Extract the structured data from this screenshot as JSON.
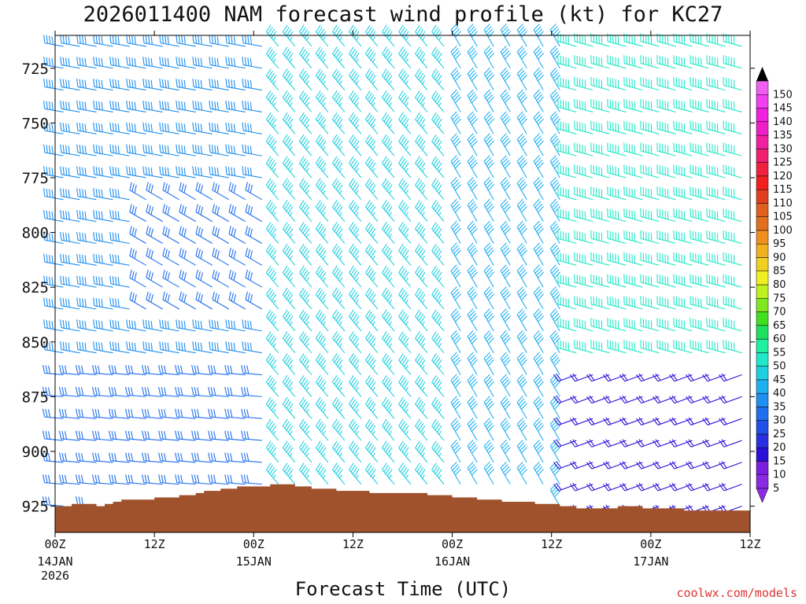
{
  "chart_data": {
    "type": "wind-barb-profile",
    "title": "2026011400 NAM forecast wind profile (kt) for KC27",
    "xlabel": "Forecast Time (UTC)",
    "ylabel": "",
    "credit": "coolwx.com/models",
    "x_hours_range": [
      0,
      84
    ],
    "x_ticks": [
      {
        "hour": 0,
        "label": "00Z",
        "date": "14JAN",
        "year": "2026"
      },
      {
        "hour": 12,
        "label": "12Z",
        "date": "",
        "year": ""
      },
      {
        "hour": 24,
        "label": "00Z",
        "date": "15JAN",
        "year": ""
      },
      {
        "hour": 36,
        "label": "12Z",
        "date": "",
        "year": ""
      },
      {
        "hour": 48,
        "label": "00Z",
        "date": "16JAN",
        "year": ""
      },
      {
        "hour": 60,
        "label": "12Z",
        "date": "",
        "year": ""
      },
      {
        "hour": 72,
        "label": "00Z",
        "date": "17JAN",
        "year": ""
      },
      {
        "hour": 84,
        "label": "12Z",
        "date": "",
        "year": ""
      }
    ],
    "y_pressure_range_hpa": [
      710,
      937
    ],
    "y_ticks": [
      725,
      750,
      775,
      800,
      825,
      850,
      875,
      900,
      925
    ],
    "pressure_levels_hpa": [
      715,
      725,
      735,
      745,
      755,
      765,
      775,
      785,
      795,
      805,
      815,
      825,
      835,
      845,
      855,
      865,
      875,
      885,
      895,
      905,
      915,
      925
    ],
    "colorbar_levels_kt": [
      5,
      10,
      15,
      20,
      25,
      30,
      35,
      40,
      45,
      50,
      55,
      60,
      65,
      70,
      75,
      80,
      85,
      90,
      95,
      100,
      105,
      110,
      115,
      120,
      125,
      130,
      135,
      140,
      145,
      150
    ],
    "colorbar_labels": [
      "5",
      "10",
      "15",
      "20",
      "25",
      "30",
      "35",
      "40",
      "45",
      "50",
      "55",
      "60",
      "65",
      "70",
      "75",
      "80",
      "85",
      "90",
      "95",
      "100",
      "105",
      "110",
      "115",
      "120",
      "125",
      "130",
      "135",
      "140",
      "145",
      "150"
    ],
    "colorbar_colors": [
      "#8a2be2",
      "#7a1fe0",
      "#2b10d8",
      "#2a30e0",
      "#2050e8",
      "#1f6fee",
      "#1f8ff0",
      "#1fb0f0",
      "#1fd0e0",
      "#20e8c8",
      "#20f0a0",
      "#20e060",
      "#40e020",
      "#80e820",
      "#c0f020",
      "#f0f020",
      "#f0d020",
      "#f0b020",
      "#f09020",
      "#e07020",
      "#e06020",
      "#e04020",
      "#f02020",
      "#f02040",
      "#f02070",
      "#f020a0",
      "#f020c8",
      "#f020e0",
      "#f040f0",
      "#f060f0"
    ],
    "surface_terrain": {
      "color": "#a0522d",
      "points": [
        [
          0,
          925
        ],
        [
          1,
          925
        ],
        [
          2,
          924
        ],
        [
          3,
          924
        ],
        [
          4,
          924
        ],
        [
          5,
          925
        ],
        [
          6,
          924
        ],
        [
          7,
          923
        ],
        [
          8,
          922
        ],
        [
          9,
          922
        ],
        [
          10,
          922
        ],
        [
          11,
          922
        ],
        [
          12,
          921
        ],
        [
          13,
          921
        ],
        [
          14,
          921
        ],
        [
          15,
          920
        ],
        [
          16,
          920
        ],
        [
          17,
          919
        ],
        [
          18,
          918
        ],
        [
          19,
          918
        ],
        [
          20,
          917
        ],
        [
          21,
          917
        ],
        [
          22,
          916
        ],
        [
          23,
          916
        ],
        [
          24,
          916
        ],
        [
          25,
          916
        ],
        [
          26,
          915
        ],
        [
          27,
          915
        ],
        [
          28,
          915
        ],
        [
          29,
          916
        ],
        [
          30,
          916
        ],
        [
          31,
          917
        ],
        [
          32,
          917
        ],
        [
          33,
          917
        ],
        [
          34,
          918
        ],
        [
          35,
          918
        ],
        [
          36,
          918
        ],
        [
          37,
          918
        ],
        [
          38,
          919
        ],
        [
          39,
          919
        ],
        [
          40,
          919
        ],
        [
          41,
          919
        ],
        [
          42,
          919
        ],
        [
          43,
          919
        ],
        [
          44,
          919
        ],
        [
          45,
          920
        ],
        [
          46,
          920
        ],
        [
          47,
          920
        ],
        [
          48,
          921
        ],
        [
          49,
          921
        ],
        [
          50,
          921
        ],
        [
          51,
          922
        ],
        [
          52,
          922
        ],
        [
          53,
          922
        ],
        [
          54,
          923
        ],
        [
          55,
          923
        ],
        [
          56,
          923
        ],
        [
          57,
          923
        ],
        [
          58,
          924
        ],
        [
          59,
          924
        ],
        [
          60,
          924
        ],
        [
          61,
          925
        ],
        [
          62,
          925
        ],
        [
          63,
          926
        ],
        [
          64,
          926
        ],
        [
          65,
          926
        ],
        [
          66,
          926
        ],
        [
          67,
          926
        ],
        [
          68,
          925
        ],
        [
          69,
          925
        ],
        [
          70,
          925
        ],
        [
          71,
          926
        ],
        [
          72,
          926
        ],
        [
          73,
          926
        ],
        [
          74,
          926
        ],
        [
          75,
          926
        ],
        [
          76,
          927
        ],
        [
          77,
          927
        ],
        [
          78,
          927
        ],
        [
          79,
          927
        ],
        [
          80,
          927
        ],
        [
          81,
          927
        ],
        [
          82,
          927
        ],
        [
          83,
          927
        ],
        [
          84,
          927
        ]
      ]
    },
    "wind_regimes": [
      {
        "hours": [
          0,
          27
        ],
        "p_range": [
          855,
          937
        ],
        "speed_kt": 30,
        "dir_deg": 275
      },
      {
        "hours": [
          0,
          27
        ],
        "p_range": [
          710,
          855
        ],
        "speed_kt": 38,
        "dir_deg": 280
      },
      {
        "hours": [
          10,
          25
        ],
        "p_range": [
          780,
          840
        ],
        "speed_kt": 32,
        "dir_deg": 300
      },
      {
        "hours": [
          27,
          48
        ],
        "p_range": [
          710,
          937
        ],
        "speed_kt": 45,
        "dir_deg": 320
      },
      {
        "hours": [
          48,
          62
        ],
        "p_range": [
          710,
          937
        ],
        "speed_kt": 40,
        "dir_deg": 330
      },
      {
        "hours": [
          62,
          84
        ],
        "p_range": [
          710,
          860
        ],
        "speed_kt": 50,
        "dir_deg": 285
      },
      {
        "hours": [
          62,
          84
        ],
        "p_range": [
          860,
          937
        ],
        "speed_kt": 18,
        "dir_deg": 250
      }
    ]
  }
}
